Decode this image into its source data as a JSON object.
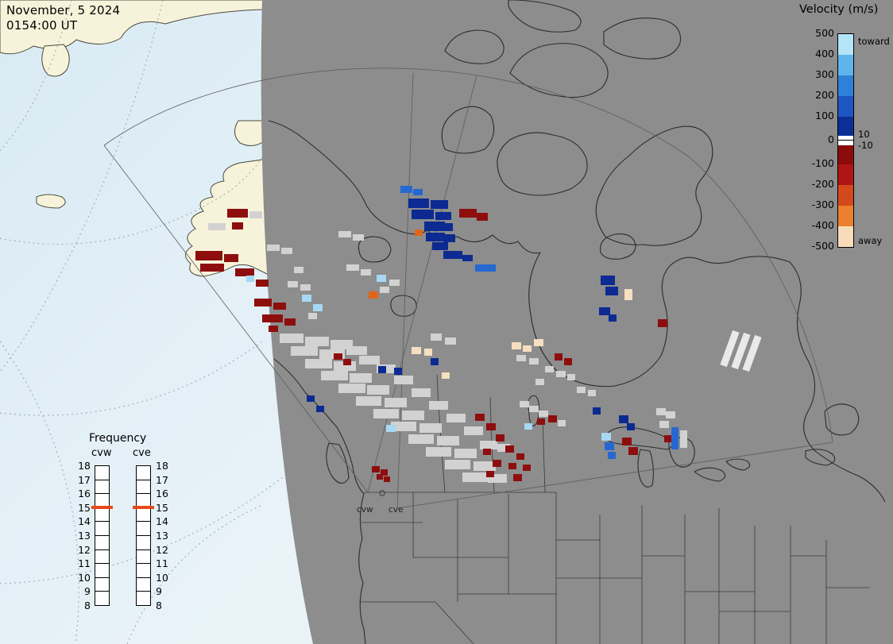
{
  "timestamp": {
    "date": "November, 5 2024",
    "time": "0154:00 UT"
  },
  "velocity_legend": {
    "title": "Velocity (m/s)",
    "toward_label": "toward",
    "away_label": "away",
    "pos_threshold_label": "10",
    "neg_threshold_label": "-10",
    "ticks": [
      "500",
      "400",
      "300",
      "200",
      "100",
      "0",
      "-100",
      "-200",
      "-300",
      "-400",
      "-500"
    ],
    "segments": [
      {
        "range": "500 to 400",
        "color": "#b4e4f8",
        "h": 26
      },
      {
        "range": "400 to 300",
        "color": "#5fb4ec",
        "h": 26
      },
      {
        "range": "300 to 200",
        "color": "#2f80d8",
        "h": 26
      },
      {
        "range": "200 to 100",
        "color": "#1f55c2",
        "h": 26
      },
      {
        "range": "100 to 10",
        "color": "#0c2f96",
        "h": 24
      },
      {
        "range": "10 to 0",
        "color": "#ffffff",
        "h": 6
      },
      {
        "range": "0 to -10",
        "color": "#ffffff",
        "h": 6
      },
      {
        "range": "-10 to -100",
        "color": "#8c0b0b",
        "h": 24
      },
      {
        "range": "-100 to -200",
        "color": "#b01414",
        "h": 26
      },
      {
        "range": "-200 to -300",
        "color": "#d2491c",
        "h": 26
      },
      {
        "range": "-300 to -400",
        "color": "#ec8030",
        "h": 26
      },
      {
        "range": "-400 to -500",
        "color": "#f8dcba",
        "h": 26
      }
    ]
  },
  "frequency_legend": {
    "title": "Frequency",
    "columns": [
      "cvw",
      "cve"
    ],
    "scale": [
      "18",
      "17",
      "16",
      "15",
      "14",
      "13",
      "12",
      "11",
      "10",
      "9",
      "8"
    ],
    "marker_value": "15",
    "marker_color": "#e8491a"
  },
  "radars": [
    {
      "name": "cvw"
    },
    {
      "name": "cve"
    }
  ],
  "chart_data": {
    "type": "heatmap",
    "title": "Velocity (m/s)",
    "legend_position": "right",
    "velocity_scale_m_s": [
      500,
      400,
      300,
      200,
      100,
      0,
      -100,
      -200,
      -300,
      -400,
      -500
    ],
    "frequency_scale_MHz": [
      18,
      17,
      16,
      15,
      14,
      13,
      12,
      11,
      10,
      9,
      8
    ],
    "radar_frequency_MHz": {
      "cvw": 15,
      "cve": 15
    },
    "palette": {
      "gs": "#d2d2d2",
      "n": "#0c2a92",
      "b": "#2668d2",
      "lb": "#a6d8f4",
      "dr": "#8e0e0e",
      "o": "#e2641a",
      "c": "#f6dfc0",
      "w": "#e9e9e9"
    },
    "cells": [
      [
        "dr",
        286,
        263,
        26,
        11
      ],
      [
        "gs",
        314,
        266,
        16,
        9
      ],
      [
        "gs",
        262,
        281,
        22,
        9
      ],
      [
        "dr",
        292,
        280,
        14,
        9
      ],
      [
        "gs",
        336,
        308,
        16,
        8
      ],
      [
        "gs",
        354,
        312,
        14,
        8
      ],
      [
        "dr",
        246,
        316,
        34,
        12
      ],
      [
        "dr",
        282,
        320,
        18,
        10
      ],
      [
        "dr",
        252,
        332,
        30,
        10
      ],
      [
        "dr",
        296,
        338,
        24,
        10
      ],
      [
        "lb",
        310,
        347,
        10,
        8
      ],
      [
        "dr",
        322,
        352,
        16,
        9
      ],
      [
        "gs",
        362,
        354,
        13,
        8
      ],
      [
        "gs",
        378,
        358,
        13,
        8
      ],
      [
        "dr",
        320,
        376,
        22,
        10
      ],
      [
        "dr",
        344,
        381,
        16,
        9
      ],
      [
        "dr",
        330,
        396,
        26,
        10
      ],
      [
        "dr",
        358,
        401,
        14,
        9
      ],
      [
        "dr",
        338,
        410,
        12,
        8
      ],
      [
        "gs",
        370,
        336,
        12,
        8
      ],
      [
        "lb",
        380,
        371,
        12,
        9
      ],
      [
        "lb",
        394,
        383,
        12,
        9
      ],
      [
        "gs",
        388,
        394,
        11,
        8
      ],
      [
        "gs",
        426,
        291,
        16,
        8
      ],
      [
        "gs",
        444,
        295,
        14,
        8
      ],
      [
        "gs",
        436,
        333,
        16,
        8
      ],
      [
        "gs",
        454,
        339,
        13,
        8
      ],
      [
        "lb",
        474,
        346,
        12,
        9
      ],
      [
        "gs",
        490,
        352,
        13,
        8
      ],
      [
        "o",
        464,
        367,
        12,
        9
      ],
      [
        "gs",
        478,
        361,
        12,
        8
      ],
      [
        "b",
        504,
        234,
        15,
        9
      ],
      [
        "b",
        520,
        238,
        12,
        8
      ],
      [
        "n",
        514,
        250,
        26,
        12
      ],
      [
        "n",
        542,
        252,
        22,
        11
      ],
      [
        "dr",
        578,
        263,
        22,
        11
      ],
      [
        "dr",
        600,
        268,
        14,
        10
      ],
      [
        "n",
        518,
        264,
        28,
        12
      ],
      [
        "n",
        548,
        267,
        20,
        10
      ],
      [
        "o",
        522,
        289,
        10,
        8
      ],
      [
        "n",
        534,
        279,
        26,
        12
      ],
      [
        "n",
        552,
        281,
        18,
        10
      ],
      [
        "n",
        536,
        293,
        24,
        11
      ],
      [
        "n",
        558,
        295,
        15,
        10
      ],
      [
        "n",
        544,
        305,
        20,
        10
      ],
      [
        "n",
        558,
        316,
        24,
        10
      ],
      [
        "n",
        582,
        321,
        13,
        8
      ],
      [
        "b",
        598,
        333,
        26,
        9
      ],
      [
        "gs",
        352,
        420,
        30,
        12
      ],
      [
        "gs",
        384,
        424,
        30,
        12
      ],
      [
        "gs",
        416,
        428,
        28,
        12
      ],
      [
        "gs",
        366,
        436,
        34,
        12
      ],
      [
        "gs",
        402,
        440,
        32,
        12
      ],
      [
        "gs",
        436,
        436,
        26,
        11
      ],
      [
        "gs",
        384,
        452,
        34,
        12
      ],
      [
        "gs",
        420,
        455,
        28,
        12
      ],
      [
        "gs",
        452,
        448,
        26,
        11
      ],
      [
        "gs",
        404,
        467,
        34,
        12
      ],
      [
        "gs",
        440,
        470,
        28,
        12
      ],
      [
        "gs",
        474,
        459,
        24,
        11
      ],
      [
        "gs",
        426,
        483,
        34,
        12
      ],
      [
        "gs",
        462,
        485,
        28,
        12
      ],
      [
        "gs",
        496,
        473,
        24,
        11
      ],
      [
        "gs",
        448,
        499,
        32,
        12
      ],
      [
        "gs",
        484,
        501,
        28,
        12
      ],
      [
        "gs",
        518,
        489,
        24,
        11
      ],
      [
        "gs",
        470,
        515,
        32,
        12
      ],
      [
        "gs",
        506,
        517,
        28,
        12
      ],
      [
        "gs",
        540,
        505,
        24,
        11
      ],
      [
        "gs",
        492,
        531,
        32,
        12
      ],
      [
        "gs",
        528,
        533,
        28,
        12
      ],
      [
        "gs",
        562,
        521,
        24,
        11
      ],
      [
        "gs",
        514,
        547,
        32,
        12
      ],
      [
        "gs",
        550,
        549,
        28,
        12
      ],
      [
        "gs",
        584,
        537,
        24,
        11
      ],
      [
        "gs",
        536,
        563,
        32,
        12
      ],
      [
        "gs",
        572,
        565,
        28,
        12
      ],
      [
        "gs",
        560,
        579,
        32,
        12
      ],
      [
        "gs",
        596,
        581,
        28,
        12
      ],
      [
        "gs",
        582,
        595,
        32,
        12
      ],
      [
        "gs",
        614,
        597,
        24,
        11
      ],
      [
        "gs",
        604,
        555,
        22,
        11
      ],
      [
        "gs",
        626,
        559,
        16,
        10
      ],
      [
        "gs",
        542,
        420,
        14,
        9
      ],
      [
        "gs",
        560,
        425,
        14,
        9
      ],
      [
        "n",
        476,
        461,
        10,
        9
      ],
      [
        "n",
        496,
        463,
        10,
        9
      ],
      [
        "n",
        542,
        451,
        10,
        9
      ],
      [
        "c",
        518,
        437,
        12,
        9
      ],
      [
        "c",
        534,
        439,
        10,
        9
      ],
      [
        "dr",
        420,
        445,
        11,
        8
      ],
      [
        "dr",
        432,
        452,
        10,
        8
      ],
      [
        "lb",
        486,
        535,
        12,
        9
      ],
      [
        "n",
        386,
        498,
        10,
        8
      ],
      [
        "n",
        398,
        511,
        10,
        8
      ],
      [
        "c",
        556,
        469,
        10,
        8
      ],
      [
        "dr",
        598,
        521,
        12,
        9
      ],
      [
        "dr",
        612,
        533,
        12,
        9
      ],
      [
        "dr",
        624,
        547,
        11,
        9
      ],
      [
        "dr",
        636,
        561,
        11,
        9
      ],
      [
        "dr",
        608,
        565,
        10,
        8
      ],
      [
        "dr",
        620,
        579,
        11,
        9
      ],
      [
        "dr",
        640,
        583,
        10,
        8
      ],
      [
        "dr",
        612,
        593,
        10,
        8
      ],
      [
        "dr",
        646,
        597,
        11,
        9
      ],
      [
        "dr",
        658,
        585,
        10,
        8
      ],
      [
        "dr",
        650,
        571,
        10,
        8
      ],
      [
        "c",
        644,
        431,
        12,
        9
      ],
      [
        "c",
        658,
        435,
        11,
        8
      ],
      [
        "c",
        672,
        427,
        12,
        9
      ],
      [
        "gs",
        650,
        447,
        12,
        8
      ],
      [
        "gs",
        666,
        451,
        12,
        8
      ],
      [
        "dr",
        698,
        445,
        10,
        9
      ],
      [
        "dr",
        710,
        451,
        10,
        9
      ],
      [
        "gs",
        686,
        461,
        11,
        8
      ],
      [
        "gs",
        700,
        467,
        12,
        8
      ],
      [
        "gs",
        674,
        477,
        11,
        8
      ],
      [
        "gs",
        714,
        471,
        10,
        8
      ],
      [
        "gs",
        726,
        487,
        11,
        8
      ],
      [
        "gs",
        740,
        491,
        10,
        8
      ],
      [
        "gs",
        654,
        505,
        12,
        8
      ],
      [
        "gs",
        666,
        511,
        12,
        8
      ],
      [
        "gs",
        678,
        517,
        12,
        8
      ],
      [
        "dr",
        690,
        523,
        11,
        9
      ],
      [
        "dr",
        676,
        527,
        10,
        8
      ],
      [
        "lb",
        660,
        533,
        10,
        8
      ],
      [
        "gs",
        702,
        529,
        10,
        8
      ],
      [
        "n",
        746,
        513,
        10,
        9
      ],
      [
        "n",
        756,
        347,
        18,
        12
      ],
      [
        "n",
        762,
        361,
        16,
        11
      ],
      [
        "c",
        786,
        364,
        10,
        14
      ],
      [
        "n",
        754,
        387,
        14,
        10
      ],
      [
        "n",
        766,
        396,
        10,
        9
      ],
      [
        "dr",
        828,
        402,
        12,
        10
      ],
      [
        "w",
        914,
        416,
        9,
        46,
        20
      ],
      [
        "w",
        928,
        419,
        9,
        46,
        20
      ],
      [
        "w",
        942,
        422,
        9,
        46,
        20
      ],
      [
        "lb",
        757,
        545,
        12,
        10
      ],
      [
        "b",
        761,
        557,
        12,
        10
      ],
      [
        "b",
        765,
        569,
        10,
        9
      ],
      [
        "n",
        779,
        523,
        12,
        10
      ],
      [
        "n",
        789,
        533,
        10,
        9
      ],
      [
        "dr",
        783,
        551,
        12,
        10
      ],
      [
        "dr",
        791,
        563,
        12,
        10
      ],
      [
        "gs",
        826,
        514,
        12,
        9
      ],
      [
        "gs",
        838,
        518,
        12,
        9
      ],
      [
        "gs",
        830,
        530,
        12,
        9
      ],
      [
        "gs",
        856,
        542,
        9,
        22
      ],
      [
        "dr",
        836,
        548,
        10,
        9
      ],
      [
        "b",
        845,
        538,
        9,
        28
      ],
      [
        "dr",
        468,
        587,
        10,
        8
      ],
      [
        "dr",
        479,
        591,
        9,
        8
      ],
      [
        "dr",
        474,
        597,
        8,
        7
      ],
      [
        "dr",
        483,
        600,
        8,
        7
      ]
    ]
  }
}
